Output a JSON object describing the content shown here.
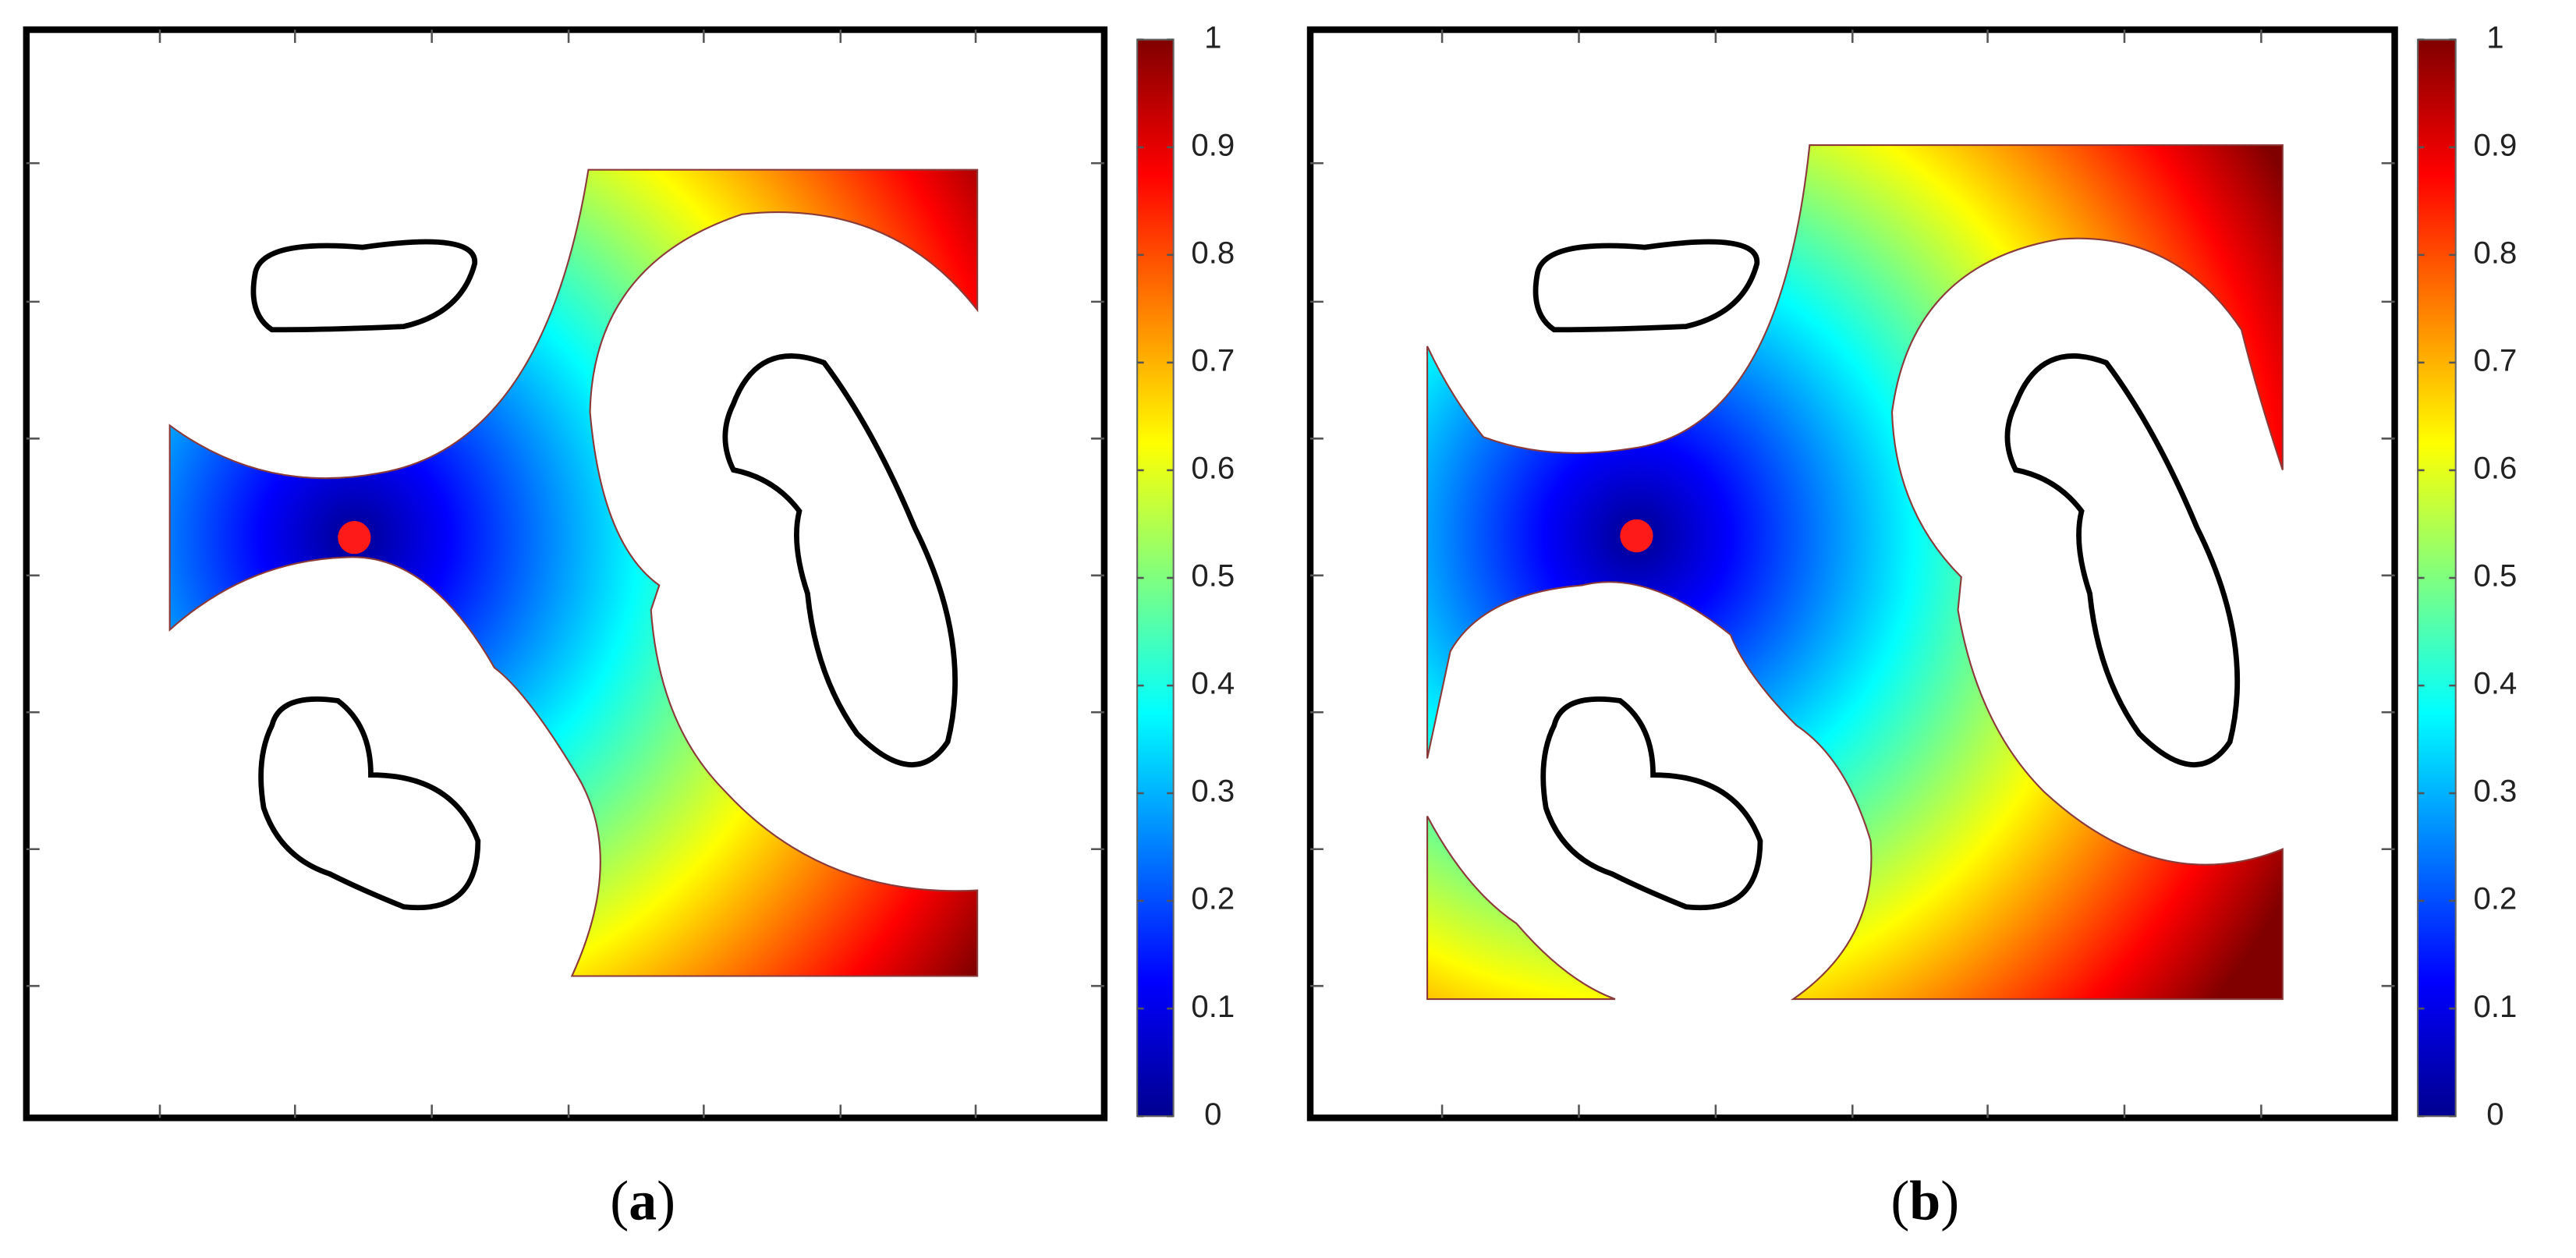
{
  "chart_data": [
    {
      "type": "field",
      "caption": [
        "(",
        "a",
        ")"
      ],
      "colormap": "jet",
      "clim": [
        0,
        1
      ],
      "cticks": [
        0,
        0.1,
        0.2,
        0.3,
        0.4,
        0.5,
        0.6,
        0.7,
        0.8,
        0.9,
        1
      ]
    },
    {
      "type": "field",
      "caption": [
        "(",
        "b",
        ")"
      ],
      "colormap": "jet",
      "clim": [
        0,
        1
      ],
      "cticks": [
        0,
        0.1,
        0.2,
        0.3,
        0.4,
        0.5,
        0.6,
        0.7,
        0.8,
        0.9,
        1
      ]
    }
  ]
}
